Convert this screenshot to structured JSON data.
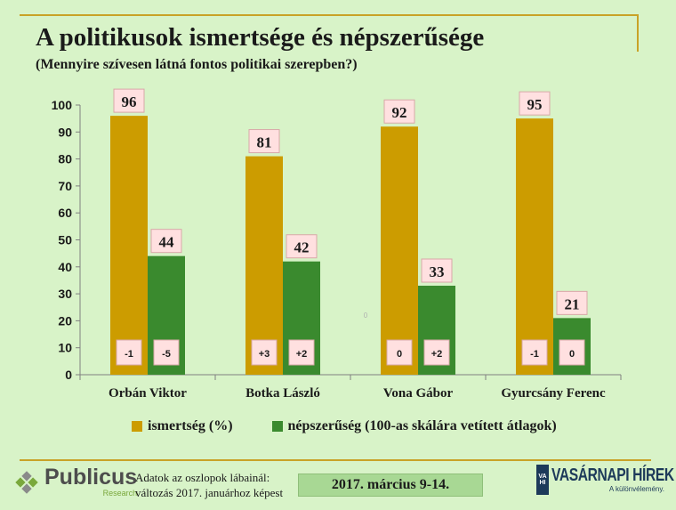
{
  "title": "A politikusok ismertsége és népszerűsége",
  "subtitle": "(Mennyire szívesen látná fontos politikai szerepben?)",
  "chart_data": {
    "type": "bar",
    "categories": [
      "Orbán Viktor",
      "Botka László",
      "Vona Gábor",
      "Gyurcsány Ferenc"
    ],
    "series": [
      {
        "name": "ismertség (%)",
        "values": [
          96,
          81,
          92,
          95
        ],
        "changes": [
          "-1",
          "",
          "0",
          "-1"
        ],
        "color": "#cc9c00"
      },
      {
        "name": "népszerűség (100-as skálára vetített átlagok)",
        "values": [
          44,
          42,
          33,
          21
        ],
        "changes": [
          "-5",
          "+2",
          "+2",
          "0"
        ],
        "color": "#3a8a2e"
      }
    ],
    "extra_changes": [
      {
        "category": "Botka László",
        "text": "+3"
      }
    ],
    "ylim": [
      0,
      100
    ],
    "yticks": [
      0,
      10,
      20,
      30,
      40,
      50,
      60,
      70,
      80,
      90,
      100
    ],
    "stray_label": "0",
    "grid": false,
    "legend_position": "bottom"
  },
  "legend": {
    "item1": "ismertség (%)",
    "item2": "népszerűség (100-as skálára vetített átlagok)",
    "color1": "#cc9c00",
    "color2": "#3a8a2e"
  },
  "footer": {
    "logo_name": "Publicus",
    "logo_sub": "Research",
    "note_line1": "Adatok az oszlopok lábainál:",
    "note_line2": "változás 2017. januárhoz képest",
    "date": "2017. március 9-14.",
    "right_logo_mark_top": "VA",
    "right_logo_mark_bottom": "HI",
    "right_logo_name": "VASÁRNAPI HÍREK",
    "right_logo_tagline": "A különvélemény."
  }
}
